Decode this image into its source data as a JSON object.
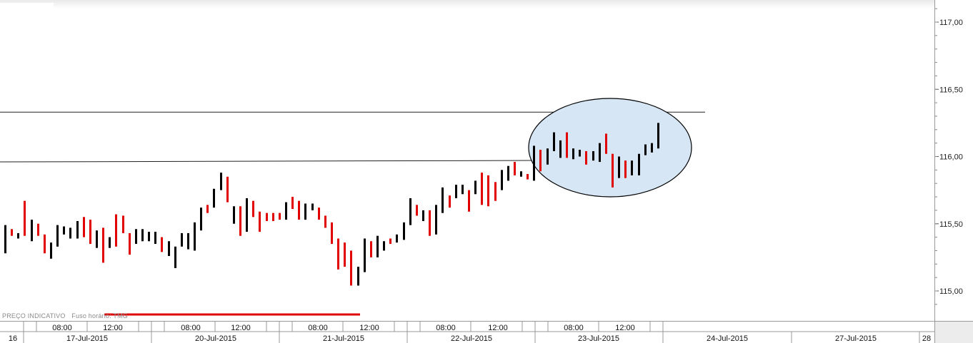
{
  "footer": {
    "price_label": "PREÇO INDICATIVO",
    "timezone_label": "Fuso horário: TMG"
  },
  "colors": {
    "up": "#000000",
    "down": "#e00000",
    "ellipse_fill": "#d6e6f5",
    "accent_line": "#e00000"
  },
  "chart_data": {
    "type": "ohlc-bar",
    "yticks": [
      "117,00",
      "116,50",
      "116,00",
      "115,50",
      "115,00"
    ],
    "ylim": [
      114.78,
      117.14
    ],
    "xaxis_top": [
      "08:00",
      "12:00",
      "08:00",
      "12:00",
      "08:00",
      "12:00",
      "08:00",
      "12:00",
      "08:00",
      "12:00"
    ],
    "xaxis_bottom": [
      "16",
      "17-Jul-2015",
      "20-Jul-2015",
      "21-Jul-2015",
      "22-Jul-2015",
      "23-Jul-2015",
      "24-Jul-2015",
      "27-Jul-2015",
      "28"
    ],
    "resistance_levels": [
      116.33,
      115.96
    ],
    "bars": [
      {
        "h": 115.49,
        "l": 115.28,
        "d": "up"
      },
      {
        "h": 115.46,
        "l": 115.41,
        "d": "down"
      },
      {
        "h": 115.43,
        "l": 115.39,
        "d": "up"
      },
      {
        "h": 115.67,
        "l": 115.41,
        "d": "down"
      },
      {
        "h": 115.53,
        "l": 115.37,
        "d": "up"
      },
      {
        "h": 115.5,
        "l": 115.41,
        "d": "down"
      },
      {
        "h": 115.42,
        "l": 115.28,
        "d": "down"
      },
      {
        "h": 115.36,
        "l": 115.24,
        "d": "up"
      },
      {
        "h": 115.49,
        "l": 115.33,
        "d": "up"
      },
      {
        "h": 115.48,
        "l": 115.42,
        "d": "up"
      },
      {
        "h": 115.47,
        "l": 115.39,
        "d": "up"
      },
      {
        "h": 115.52,
        "l": 115.39,
        "d": "up"
      },
      {
        "h": 115.55,
        "l": 115.4,
        "d": "down"
      },
      {
        "h": 115.53,
        "l": 115.35,
        "d": "down"
      },
      {
        "h": 115.45,
        "l": 115.32,
        "d": "up"
      },
      {
        "h": 115.47,
        "l": 115.21,
        "d": "down"
      },
      {
        "h": 115.4,
        "l": 115.32,
        "d": "up"
      },
      {
        "h": 115.57,
        "l": 115.33,
        "d": "down"
      },
      {
        "h": 115.56,
        "l": 115.43,
        "d": "down"
      },
      {
        "h": 115.43,
        "l": 115.27,
        "d": "down"
      },
      {
        "h": 115.46,
        "l": 115.35,
        "d": "up"
      },
      {
        "h": 115.46,
        "l": 115.37,
        "d": "up"
      },
      {
        "h": 115.44,
        "l": 115.37,
        "d": "up"
      },
      {
        "h": 115.44,
        "l": 115.35,
        "d": "up"
      },
      {
        "h": 115.4,
        "l": 115.29,
        "d": "down"
      },
      {
        "h": 115.37,
        "l": 115.26,
        "d": "up"
      },
      {
        "h": 115.33,
        "l": 115.17,
        "d": "up"
      },
      {
        "h": 115.43,
        "l": 115.33,
        "d": "up"
      },
      {
        "h": 115.43,
        "l": 115.31,
        "d": "up"
      },
      {
        "h": 115.51,
        "l": 115.3,
        "d": "up"
      },
      {
        "h": 115.62,
        "l": 115.45,
        "d": "up"
      },
      {
        "h": 115.64,
        "l": 115.58,
        "d": "down"
      },
      {
        "h": 115.76,
        "l": 115.62,
        "d": "up"
      },
      {
        "h": 115.88,
        "l": 115.75,
        "d": "up"
      },
      {
        "h": 115.85,
        "l": 115.66,
        "d": "down"
      },
      {
        "h": 115.63,
        "l": 115.5,
        "d": "up"
      },
      {
        "h": 115.63,
        "l": 115.41,
        "d": "down"
      },
      {
        "h": 115.69,
        "l": 115.44,
        "d": "up"
      },
      {
        "h": 115.67,
        "l": 115.55,
        "d": "down"
      },
      {
        "h": 115.59,
        "l": 115.44,
        "d": "down"
      },
      {
        "h": 115.58,
        "l": 115.52,
        "d": "down"
      },
      {
        "h": 115.58,
        "l": 115.52,
        "d": "down"
      },
      {
        "h": 115.58,
        "l": 115.53,
        "d": "down"
      },
      {
        "h": 115.66,
        "l": 115.53,
        "d": "up"
      },
      {
        "h": 115.7,
        "l": 115.61,
        "d": "down"
      },
      {
        "h": 115.67,
        "l": 115.53,
        "d": "down"
      },
      {
        "h": 115.65,
        "l": 115.53,
        "d": "up"
      },
      {
        "h": 115.65,
        "l": 115.6,
        "d": "up"
      },
      {
        "h": 115.62,
        "l": 115.53,
        "d": "down"
      },
      {
        "h": 115.56,
        "l": 115.47,
        "d": "down"
      },
      {
        "h": 115.51,
        "l": 115.35,
        "d": "down"
      },
      {
        "h": 115.39,
        "l": 115.16,
        "d": "down"
      },
      {
        "h": 115.36,
        "l": 115.18,
        "d": "down"
      },
      {
        "h": 115.3,
        "l": 115.04,
        "d": "down"
      },
      {
        "h": 115.18,
        "l": 115.04,
        "d": "up"
      },
      {
        "h": 115.39,
        "l": 115.14,
        "d": "up"
      },
      {
        "h": 115.37,
        "l": 115.25,
        "d": "down"
      },
      {
        "h": 115.41,
        "l": 115.25,
        "d": "up"
      },
      {
        "h": 115.37,
        "l": 115.3,
        "d": "up"
      },
      {
        "h": 115.39,
        "l": 115.35,
        "d": "down"
      },
      {
        "h": 115.42,
        "l": 115.36,
        "d": "up"
      },
      {
        "h": 115.51,
        "l": 115.38,
        "d": "up"
      },
      {
        "h": 115.69,
        "l": 115.49,
        "d": "up"
      },
      {
        "h": 115.64,
        "l": 115.56,
        "d": "down"
      },
      {
        "h": 115.6,
        "l": 115.52,
        "d": "up"
      },
      {
        "h": 115.6,
        "l": 115.41,
        "d": "down"
      },
      {
        "h": 115.64,
        "l": 115.42,
        "d": "up"
      },
      {
        "h": 115.77,
        "l": 115.58,
        "d": "up"
      },
      {
        "h": 115.71,
        "l": 115.62,
        "d": "down"
      },
      {
        "h": 115.79,
        "l": 115.69,
        "d": "up"
      },
      {
        "h": 115.79,
        "l": 115.72,
        "d": "up"
      },
      {
        "h": 115.75,
        "l": 115.59,
        "d": "down"
      },
      {
        "h": 115.82,
        "l": 115.72,
        "d": "up"
      },
      {
        "h": 115.88,
        "l": 115.64,
        "d": "down"
      },
      {
        "h": 115.86,
        "l": 115.63,
        "d": "down"
      },
      {
        "h": 115.81,
        "l": 115.67,
        "d": "down"
      },
      {
        "h": 115.9,
        "l": 115.75,
        "d": "up"
      },
      {
        "h": 115.93,
        "l": 115.82,
        "d": "up"
      },
      {
        "h": 115.96,
        "l": 115.86,
        "d": "down"
      },
      {
        "h": 115.89,
        "l": 115.85,
        "d": "up"
      },
      {
        "h": 115.87,
        "l": 115.83,
        "d": "down"
      },
      {
        "h": 116.08,
        "l": 115.82,
        "d": "up"
      },
      {
        "h": 116.05,
        "l": 115.89,
        "d": "down"
      },
      {
        "h": 116.06,
        "l": 115.94,
        "d": "up"
      },
      {
        "h": 116.18,
        "l": 116.04,
        "d": "up"
      },
      {
        "h": 116.12,
        "l": 115.99,
        "d": "up"
      },
      {
        "h": 116.18,
        "l": 115.99,
        "d": "down"
      },
      {
        "h": 116.06,
        "l": 115.98,
        "d": "up"
      },
      {
        "h": 116.05,
        "l": 116.0,
        "d": "up"
      },
      {
        "h": 116.04,
        "l": 115.94,
        "d": "down"
      },
      {
        "h": 116.04,
        "l": 115.97,
        "d": "up"
      },
      {
        "h": 116.1,
        "l": 115.96,
        "d": "up"
      },
      {
        "h": 116.17,
        "l": 116.02,
        "d": "down"
      },
      {
        "h": 116.02,
        "l": 115.77,
        "d": "down"
      },
      {
        "h": 116.0,
        "l": 115.84,
        "d": "up"
      },
      {
        "h": 115.97,
        "l": 115.84,
        "d": "down"
      },
      {
        "h": 115.97,
        "l": 115.86,
        "d": "up"
      },
      {
        "h": 116.02,
        "l": 115.86,
        "d": "up"
      },
      {
        "h": 116.09,
        "l": 116.01,
        "d": "up"
      },
      {
        "h": 116.1,
        "l": 116.03,
        "d": "up"
      },
      {
        "h": 116.25,
        "l": 116.06,
        "d": "up"
      }
    ]
  }
}
